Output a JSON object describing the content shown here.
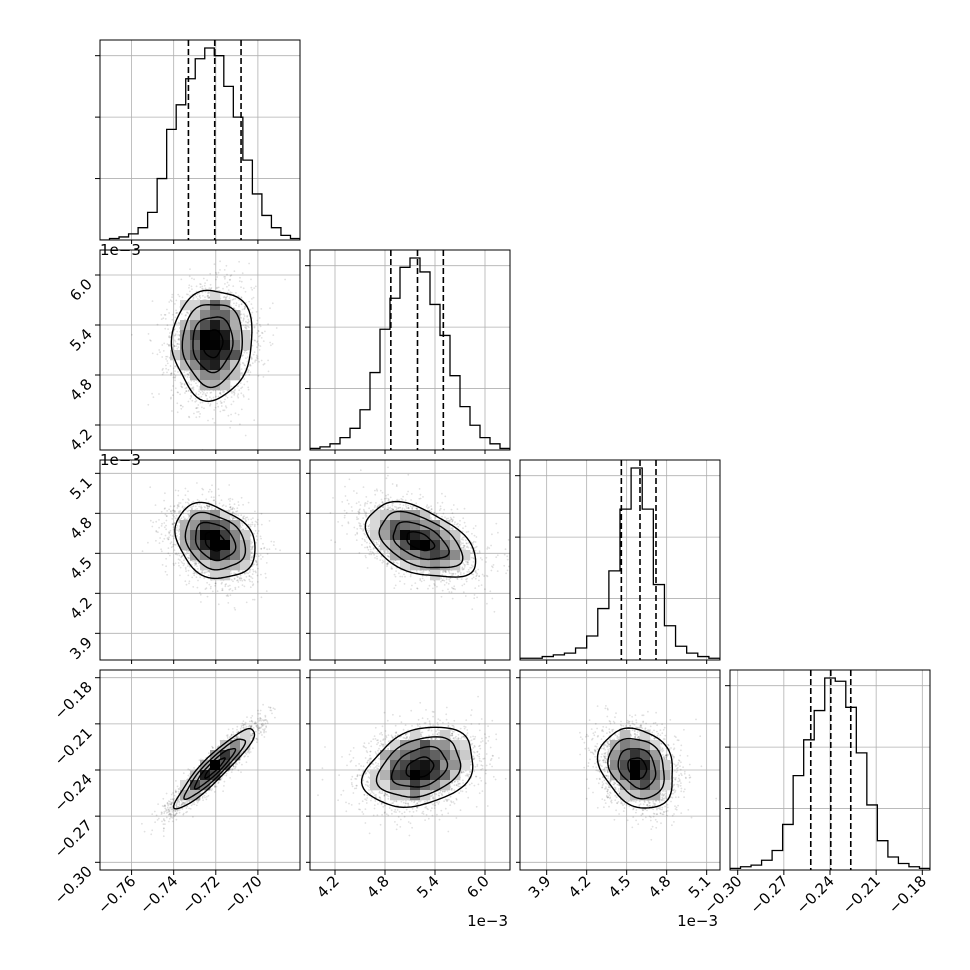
{
  "chart_data": {
    "type": "corner",
    "grid": true,
    "parameters": [
      {
        "range": [
          -0.775,
          -0.68
        ],
        "ticks": [
          -0.76,
          -0.74,
          -0.72,
          -0.7
        ],
        "tick_labels": [
          "−0.76",
          "−0.74",
          "−0.72",
          "−0.70"
        ],
        "offset_text": "",
        "quantiles": [
          -0.733,
          -0.7205,
          -0.708
        ]
      },
      {
        "range": [
          0.0039,
          0.0063
        ],
        "ticks": [
          0.0042,
          0.0048,
          0.0054,
          0.006
        ],
        "tick_labels": [
          "4.2",
          "4.8",
          "5.4",
          "6.0"
        ],
        "offset_text": "1e−3",
        "quantiles": [
          0.00487,
          0.00519,
          0.0055
        ]
      },
      {
        "range": [
          0.0037,
          0.0052
        ],
        "ticks": [
          0.0039,
          0.0042,
          0.0045,
          0.0048,
          0.0051
        ],
        "tick_labels": [
          "3.9",
          "4.2",
          "4.5",
          "4.8",
          "5.1"
        ],
        "offset_text": "1e−3",
        "quantiles": [
          0.00446,
          0.0046,
          0.00472
        ]
      },
      {
        "range": [
          -0.305,
          -0.175
        ],
        "ticks": [
          -0.3,
          -0.27,
          -0.24,
          -0.21,
          -0.18
        ],
        "tick_labels": [
          "−0.30",
          "−0.27",
          "−0.24",
          "−0.21",
          "−0.18"
        ],
        "offset_text": "",
        "quantiles": [
          -0.2525,
          -0.2395,
          -0.2265
        ]
      }
    ],
    "histograms": [
      {
        "counts": [
          0,
          1,
          2,
          4,
          8,
          18,
          40,
          72,
          88,
          105,
          118,
          125,
          120,
          100,
          80,
          52,
          30,
          16,
          8,
          3,
          1
        ]
      },
      {
        "counts": [
          1,
          2,
          4,
          8,
          14,
          26,
          50,
          78,
          98,
          118,
          124,
          115,
          94,
          74,
          48,
          28,
          16,
          8,
          4,
          1
        ]
      },
      {
        "counts": [
          1,
          1,
          2,
          3,
          4,
          7,
          14,
          30,
          52,
          88,
          112,
          88,
          44,
          20,
          8,
          4,
          2,
          1
        ]
      },
      {
        "counts": [
          1,
          2,
          3,
          6,
          12,
          28,
          58,
          80,
          98,
          118,
          116,
          100,
          72,
          40,
          18,
          8,
          4,
          2,
          1
        ]
      }
    ],
    "pairs": [
      {
        "x": 0,
        "y": 1,
        "mean": [
          -0.7215,
          0.00518
        ],
        "sd": [
          0.0095,
          0.00033
        ],
        "rho": 0.04
      },
      {
        "x": 0,
        "y": 2,
        "mean": [
          -0.7205,
          0.00459
        ],
        "sd": [
          0.0095,
          0.00014
        ],
        "rho": -0.25
      },
      {
        "x": 1,
        "y": 2,
        "mean": [
          0.00522,
          0.00459
        ],
        "sd": [
          0.00033,
          0.00014
        ],
        "rho": -0.45
      },
      {
        "x": 0,
        "y": 3,
        "mean": [
          -0.7205,
          -0.2385
        ],
        "sd": [
          0.0095,
          0.013
        ],
        "rho": 0.92
      },
      {
        "x": 1,
        "y": 3,
        "mean": [
          0.00522,
          -0.2385
        ],
        "sd": [
          0.00033,
          0.013
        ],
        "rho": 0.28
      },
      {
        "x": 2,
        "y": 3,
        "mean": [
          0.00458,
          -0.2385
        ],
        "sd": [
          0.00014,
          0.013
        ],
        "rho": -0.22
      }
    ]
  }
}
